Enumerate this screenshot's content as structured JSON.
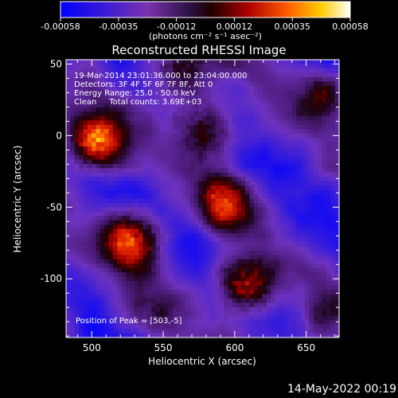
{
  "chart_data": {
    "type": "heatmap",
    "title": "Reconstructed RHESSI Image",
    "xlabel": "Heliocentric X (arcsec)",
    "ylabel": "Heliocentric Y (arcsec)",
    "xlim": [
      482,
      673
    ],
    "ylim": [
      -141,
      53
    ],
    "xticks": [
      500,
      550,
      600,
      650
    ],
    "yticks": [
      50,
      0,
      -50,
      -100
    ],
    "colorbar": {
      "ticks": [
        "-0.00058",
        "-0.00035",
        "-0.00012",
        "0.00012",
        "0.00035",
        "0.00058"
      ],
      "unit_label": "(photons cm⁻² s⁻¹ asec⁻²)",
      "range": [
        -0.00058,
        0.00058
      ]
    },
    "annotations": [
      "19-Mar-2014 23:01:36.000 to 23:04:00.000",
      "Detectors: 3F 4F 5F 6F 7F 8F, Att 0",
      "Energy Range: 25.0 - 50.0 keV",
      "Clean     Total counts: 3.69E+03"
    ],
    "peak_text": "Position of Peak = [503,-5]",
    "sources": [
      {
        "x": 503,
        "y": -5,
        "peak": 1.0
      },
      {
        "x": 530,
        "y": -72,
        "peak": 0.95
      },
      {
        "x": 608,
        "y": -105,
        "peak": 0.92
      },
      {
        "x": 592,
        "y": -45,
        "peak": 0.72
      },
      {
        "x": 578,
        "y": 5,
        "peak": 0.65
      },
      {
        "x": 560,
        "y": 45,
        "peak": 0.58
      },
      {
        "x": 665,
        "y": 30,
        "peak": 0.5
      },
      {
        "x": 660,
        "y": -130,
        "peak": 0.35
      },
      {
        "x": 540,
        "y": -125,
        "peak": 0.3
      }
    ]
  },
  "footer": {
    "date": "14-May-2022 00:19"
  }
}
